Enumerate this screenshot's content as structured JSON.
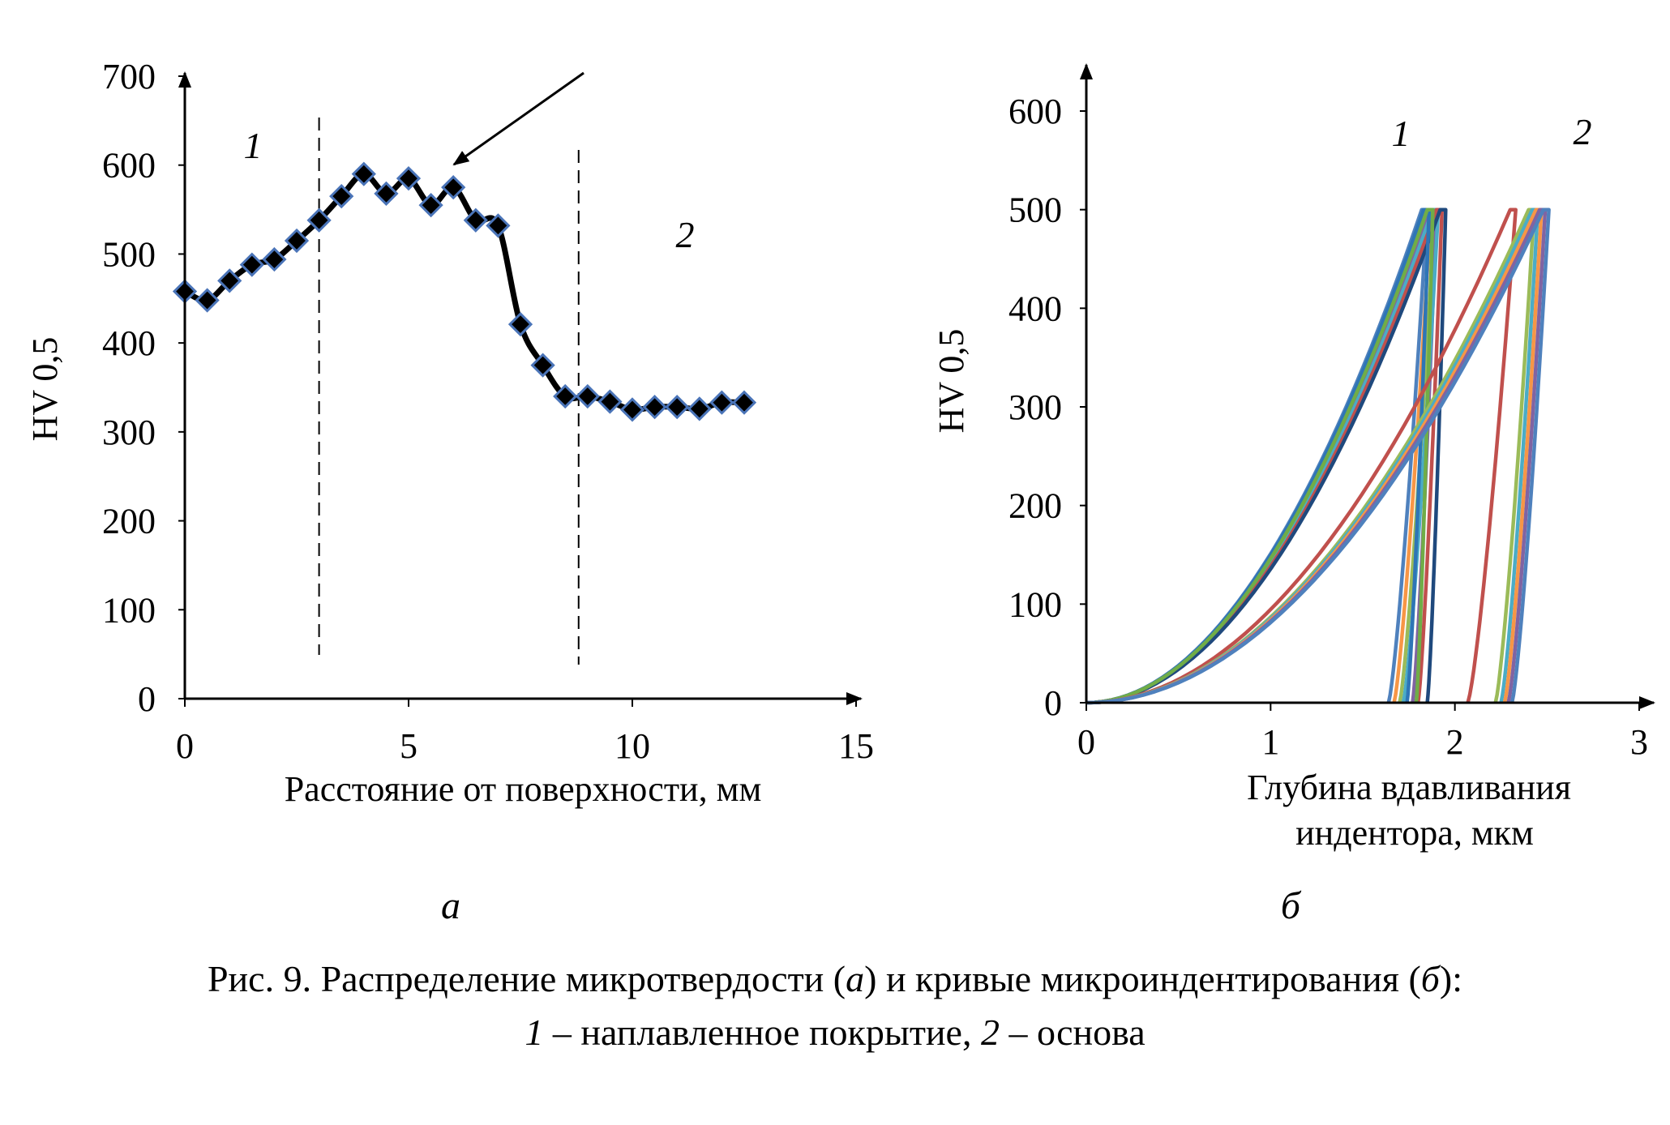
{
  "caption": {
    "line1_prefix": "Рис. 9. Распределение микротвердости (",
    "line1_a": "а",
    "line1_mid": ") и кривые микроиндентирования (",
    "line1_b": "б",
    "line1_suffix": "):",
    "line2_n1": "1",
    "line2_t1": " – наплавленное покрытие, ",
    "line2_n2": "2",
    "line2_t2": " – основа"
  },
  "chart_data": [
    {
      "type": "line",
      "panel_label": "а",
      "xlabel": "Расстояние от поверхности, мм",
      "ylabel": "HV 0,5",
      "xlim": [
        0,
        15
      ],
      "ylim": [
        0,
        700
      ],
      "xticks": [
        "0",
        "5",
        "10",
        "15"
      ],
      "yticks": [
        "0",
        "100",
        "200",
        "300",
        "400",
        "500",
        "600",
        "700"
      ],
      "marker": "diamond",
      "line_color": "#000000",
      "marker_edge_color": "#4a74b8",
      "zone_labels": [
        "1",
        "2"
      ],
      "zone_boundaries_x": [
        3.0,
        8.8
      ],
      "arrow_points_to_x": 6.0,
      "series": [
        {
          "x": [
            0,
            0.5,
            1.0,
            1.5,
            2.0,
            2.5,
            3.0,
            3.5,
            4.0,
            4.5,
            5.0,
            5.5,
            6.0,
            6.5,
            7.0,
            7.5,
            8.0,
            8.5,
            9.0,
            9.5,
            10.0,
            10.5,
            11.0,
            11.5,
            12.0,
            12.5
          ],
          "values": [
            458,
            448,
            470,
            488,
            494,
            515,
            538,
            565,
            590,
            568,
            585,
            555,
            575,
            538,
            532,
            421,
            375,
            340,
            340,
            334,
            325,
            328,
            328,
            326,
            333,
            333
          ]
        }
      ]
    },
    {
      "type": "line",
      "panel_label": "б",
      "xlabel": "Глубина вдавливания индентора, мкм",
      "xlabel_lines": [
        "Глубина вдавливания",
        "индентора, мкм"
      ],
      "ylabel": "HV 0,5",
      "xlim": [
        0,
        3
      ],
      "ylim": [
        0,
        600
      ],
      "xticks": [
        "0",
        "1",
        "2",
        "3"
      ],
      "yticks": [
        "0",
        "100",
        "200",
        "300",
        "400",
        "500",
        "600"
      ],
      "zone_labels": [
        "1",
        "2"
      ],
      "peak_load": 500,
      "series": [
        {
          "group": "1",
          "max_depth": 1.82,
          "unload_end": 1.64,
          "color": "#4f81bd"
        },
        {
          "group": "1",
          "max_depth": 1.84,
          "unload_end": 1.67,
          "color": "#f79646"
        },
        {
          "group": "1",
          "max_depth": 1.86,
          "unload_end": 1.7,
          "color": "#9bbb59"
        },
        {
          "group": "1",
          "max_depth": 1.87,
          "unload_end": 1.77,
          "color": "#8064a2"
        },
        {
          "group": "1",
          "max_depth": 1.88,
          "unload_end": 1.72,
          "color": "#4bacc6"
        },
        {
          "group": "1",
          "max_depth": 1.9,
          "unload_end": 1.8,
          "color": "#c0504d"
        },
        {
          "group": "1",
          "max_depth": 1.92,
          "unload_end": 1.85,
          "color": "#1f497d"
        },
        {
          "group": "1",
          "max_depth": 1.83,
          "unload_end": 1.74,
          "color": "#2e75b6"
        },
        {
          "group": "1",
          "max_depth": 1.85,
          "unload_end": 1.79,
          "color": "#70ad47"
        },
        {
          "group": "2",
          "max_depth": 2.3,
          "unload_end": 2.07,
          "color": "#c0504d"
        },
        {
          "group": "2",
          "max_depth": 2.4,
          "unload_end": 2.22,
          "color": "#9bbb59"
        },
        {
          "group": "2",
          "max_depth": 2.42,
          "unload_end": 2.25,
          "color": "#4bacc6"
        },
        {
          "group": "2",
          "max_depth": 2.44,
          "unload_end": 2.27,
          "color": "#f79646"
        },
        {
          "group": "2",
          "max_depth": 2.46,
          "unload_end": 2.29,
          "color": "#8064a2"
        },
        {
          "group": "2",
          "max_depth": 2.48,
          "unload_end": 2.31,
          "color": "#4f81bd"
        }
      ]
    }
  ]
}
